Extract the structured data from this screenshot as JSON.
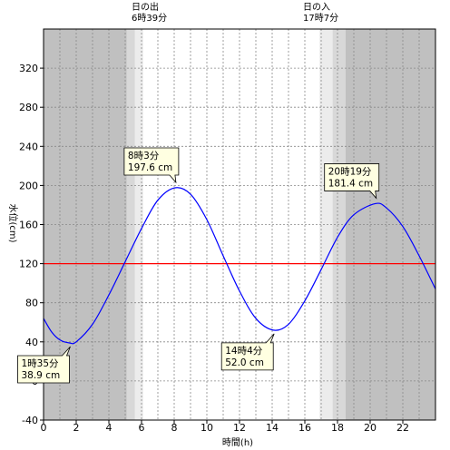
{
  "chart_data": {
    "type": "line",
    "xlabel": "時間(h)",
    "ylabel": "水位(cm)",
    "xlim": [
      0,
      24
    ],
    "ylim": [
      -40,
      360
    ],
    "x_ticks": [
      0,
      2,
      4,
      6,
      8,
      10,
      12,
      14,
      16,
      18,
      20,
      22
    ],
    "y_ticks": [
      -40,
      0,
      40,
      80,
      120,
      160,
      200,
      240,
      280,
      320
    ],
    "grid": true,
    "reference_line": {
      "y": 120,
      "color": "#ff0000"
    },
    "series": [
      {
        "color": "#0000ff",
        "x": [
          0,
          0.5,
          1,
          1.583,
          2,
          3,
          4,
          5,
          6,
          7,
          8.05,
          9,
          10,
          11,
          12,
          13,
          14.067,
          15,
          16,
          17,
          18,
          19,
          20.317,
          21,
          22,
          23,
          24
        ],
        "y": [
          64,
          50,
          42,
          38.9,
          40,
          58,
          88,
          122,
          156,
          185,
          197.6,
          191,
          165,
          128,
          92,
          64,
          52,
          58,
          82,
          114,
          147,
          170,
          181.4,
          177,
          158,
          128,
          94
        ]
      }
    ],
    "annotations": [
      {
        "time": "1時35分",
        "value": "38.9 cm",
        "x": 1.583,
        "y": 38.9
      },
      {
        "time": "8時3分",
        "value": "197.6 cm",
        "x": 8.05,
        "y": 197.6
      },
      {
        "time": "14時4分",
        "value": "52.0 cm",
        "x": 14.067,
        "y": 52.0
      },
      {
        "time": "20時19分",
        "value": "181.4 cm",
        "x": 20.317,
        "y": 181.4
      }
    ],
    "sunrise": {
      "title": "日の出",
      "time": "6時39分",
      "x": 6.65
    },
    "sunset": {
      "title": "日の入",
      "time": "17時7分",
      "x": 17.117
    },
    "night_bands": [
      {
        "from": 0,
        "to": 5.1,
        "color": "#c0c0c0"
      },
      {
        "from": 5.1,
        "to": 5.6,
        "color": "#d8d8d8"
      },
      {
        "from": 5.6,
        "to": 6.1,
        "color": "#ececec"
      },
      {
        "from": 16.9,
        "to": 17.7,
        "color": "#ececec"
      },
      {
        "from": 17.7,
        "to": 18.5,
        "color": "#d8d8d8"
      },
      {
        "from": 18.5,
        "to": 24,
        "color": "#c0c0c0"
      }
    ],
    "colors": {
      "plot_background": "#ffffff",
      "grid": "#888888",
      "callout_fill": "#ffffe1"
    }
  }
}
